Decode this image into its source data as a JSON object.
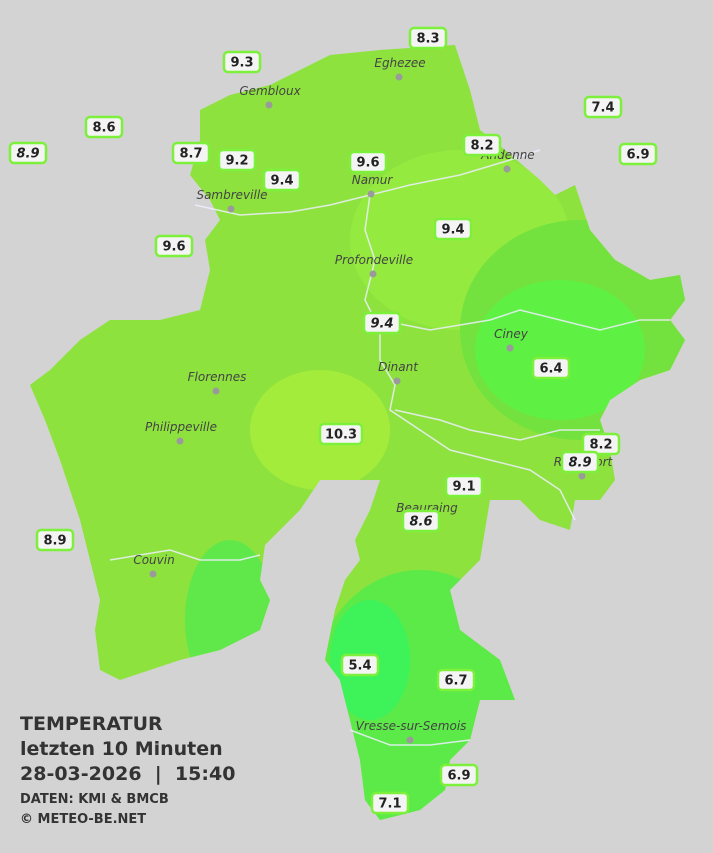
{
  "towns": [
    "Eghezee",
    "Gembloux",
    "Andenne",
    "Sambreville",
    "Namur",
    "Profondeville",
    "Ciney",
    "Dinant",
    "Florennes",
    "Philippeville",
    "Rochefort",
    "Beauraing",
    "Couvin",
    "Vresse-sur-Semois"
  ],
  "stations": [
    {
      "value": 8.3
    },
    {
      "value": 9.3
    },
    {
      "value": 8.6
    },
    {
      "value": 8.9,
      "italic": true
    },
    {
      "value": 8.7
    },
    {
      "value": 9.2
    },
    {
      "value": 9.4
    },
    {
      "value": 9.6
    },
    {
      "value": 8.2
    },
    {
      "value": 7.4
    },
    {
      "value": 6.9
    },
    {
      "value": 9.4
    },
    {
      "value": 9.6
    },
    {
      "value": 9.4,
      "italic": true
    },
    {
      "value": 6.4
    },
    {
      "value": 10.3
    },
    {
      "value": 8.2
    },
    {
      "value": 8.9,
      "italic": true
    },
    {
      "value": 9.1
    },
    {
      "value": 8.6,
      "italic": true
    },
    {
      "value": 8.9
    },
    {
      "value": 5.4
    },
    {
      "value": 6.7
    },
    {
      "value": 6.9
    },
    {
      "value": 7.1
    }
  ],
  "legend": {
    "title": [
      "TEMPERATUR",
      "letzten 10 Minuten",
      "28-03-2026  |  15:40"
    ],
    "credits": [
      "DATEN: KMI & BMCB",
      "© METEO-BE.NET"
    ]
  }
}
